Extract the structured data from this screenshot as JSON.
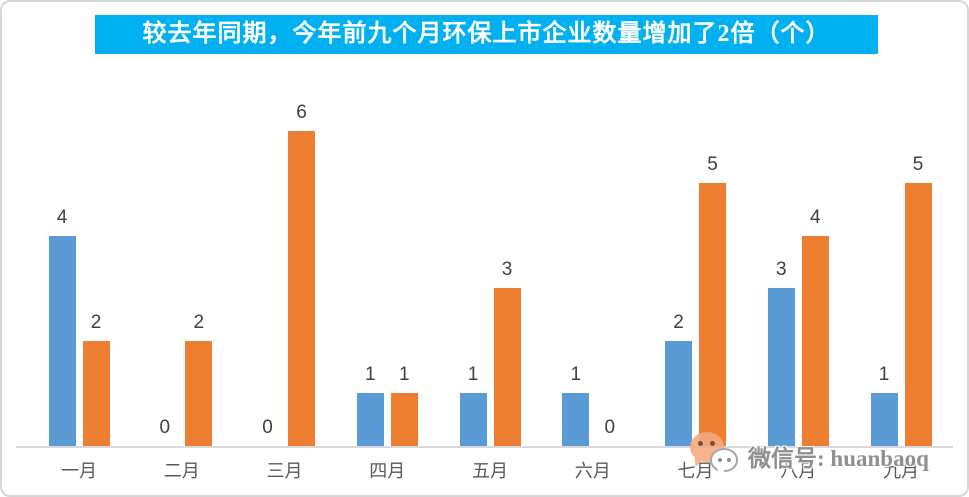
{
  "window": {
    "background": "#FFFFFF",
    "border_color": "#D6D6D6"
  },
  "title": {
    "text": "较去年同期，今年前九个月环保上市企业数量增加了2倍（个）",
    "bg_color": "#00B0F0",
    "text_color": "#FFFFFF"
  },
  "watermark": {
    "icon": "wechat-icon",
    "text": "微信号: huanbaoq",
    "color": "#808080"
  },
  "chart_data": {
    "type": "bar",
    "title": "较去年同期，今年前九个月环保上市企业数量增加了2倍（个）",
    "categories": [
      "一月",
      "二月",
      "三月",
      "四月",
      "五月",
      "六月",
      "七月",
      "八月",
      "九月"
    ],
    "series": [
      {
        "color": "#5B9BD5",
        "values": [
          4,
          0,
          0,
          1,
          1,
          1,
          2,
          3,
          1
        ]
      },
      {
        "color": "#ED7D31",
        "values": [
          2,
          2,
          6,
          1,
          3,
          0,
          5,
          4,
          5
        ]
      }
    ],
    "ylim": [
      0,
      6
    ],
    "data_labels": "on",
    "legend": "none",
    "grid": "off",
    "axis_line_color": "#D9D9D9",
    "data_label_color": "#404040",
    "category_label_color": "#595959"
  }
}
